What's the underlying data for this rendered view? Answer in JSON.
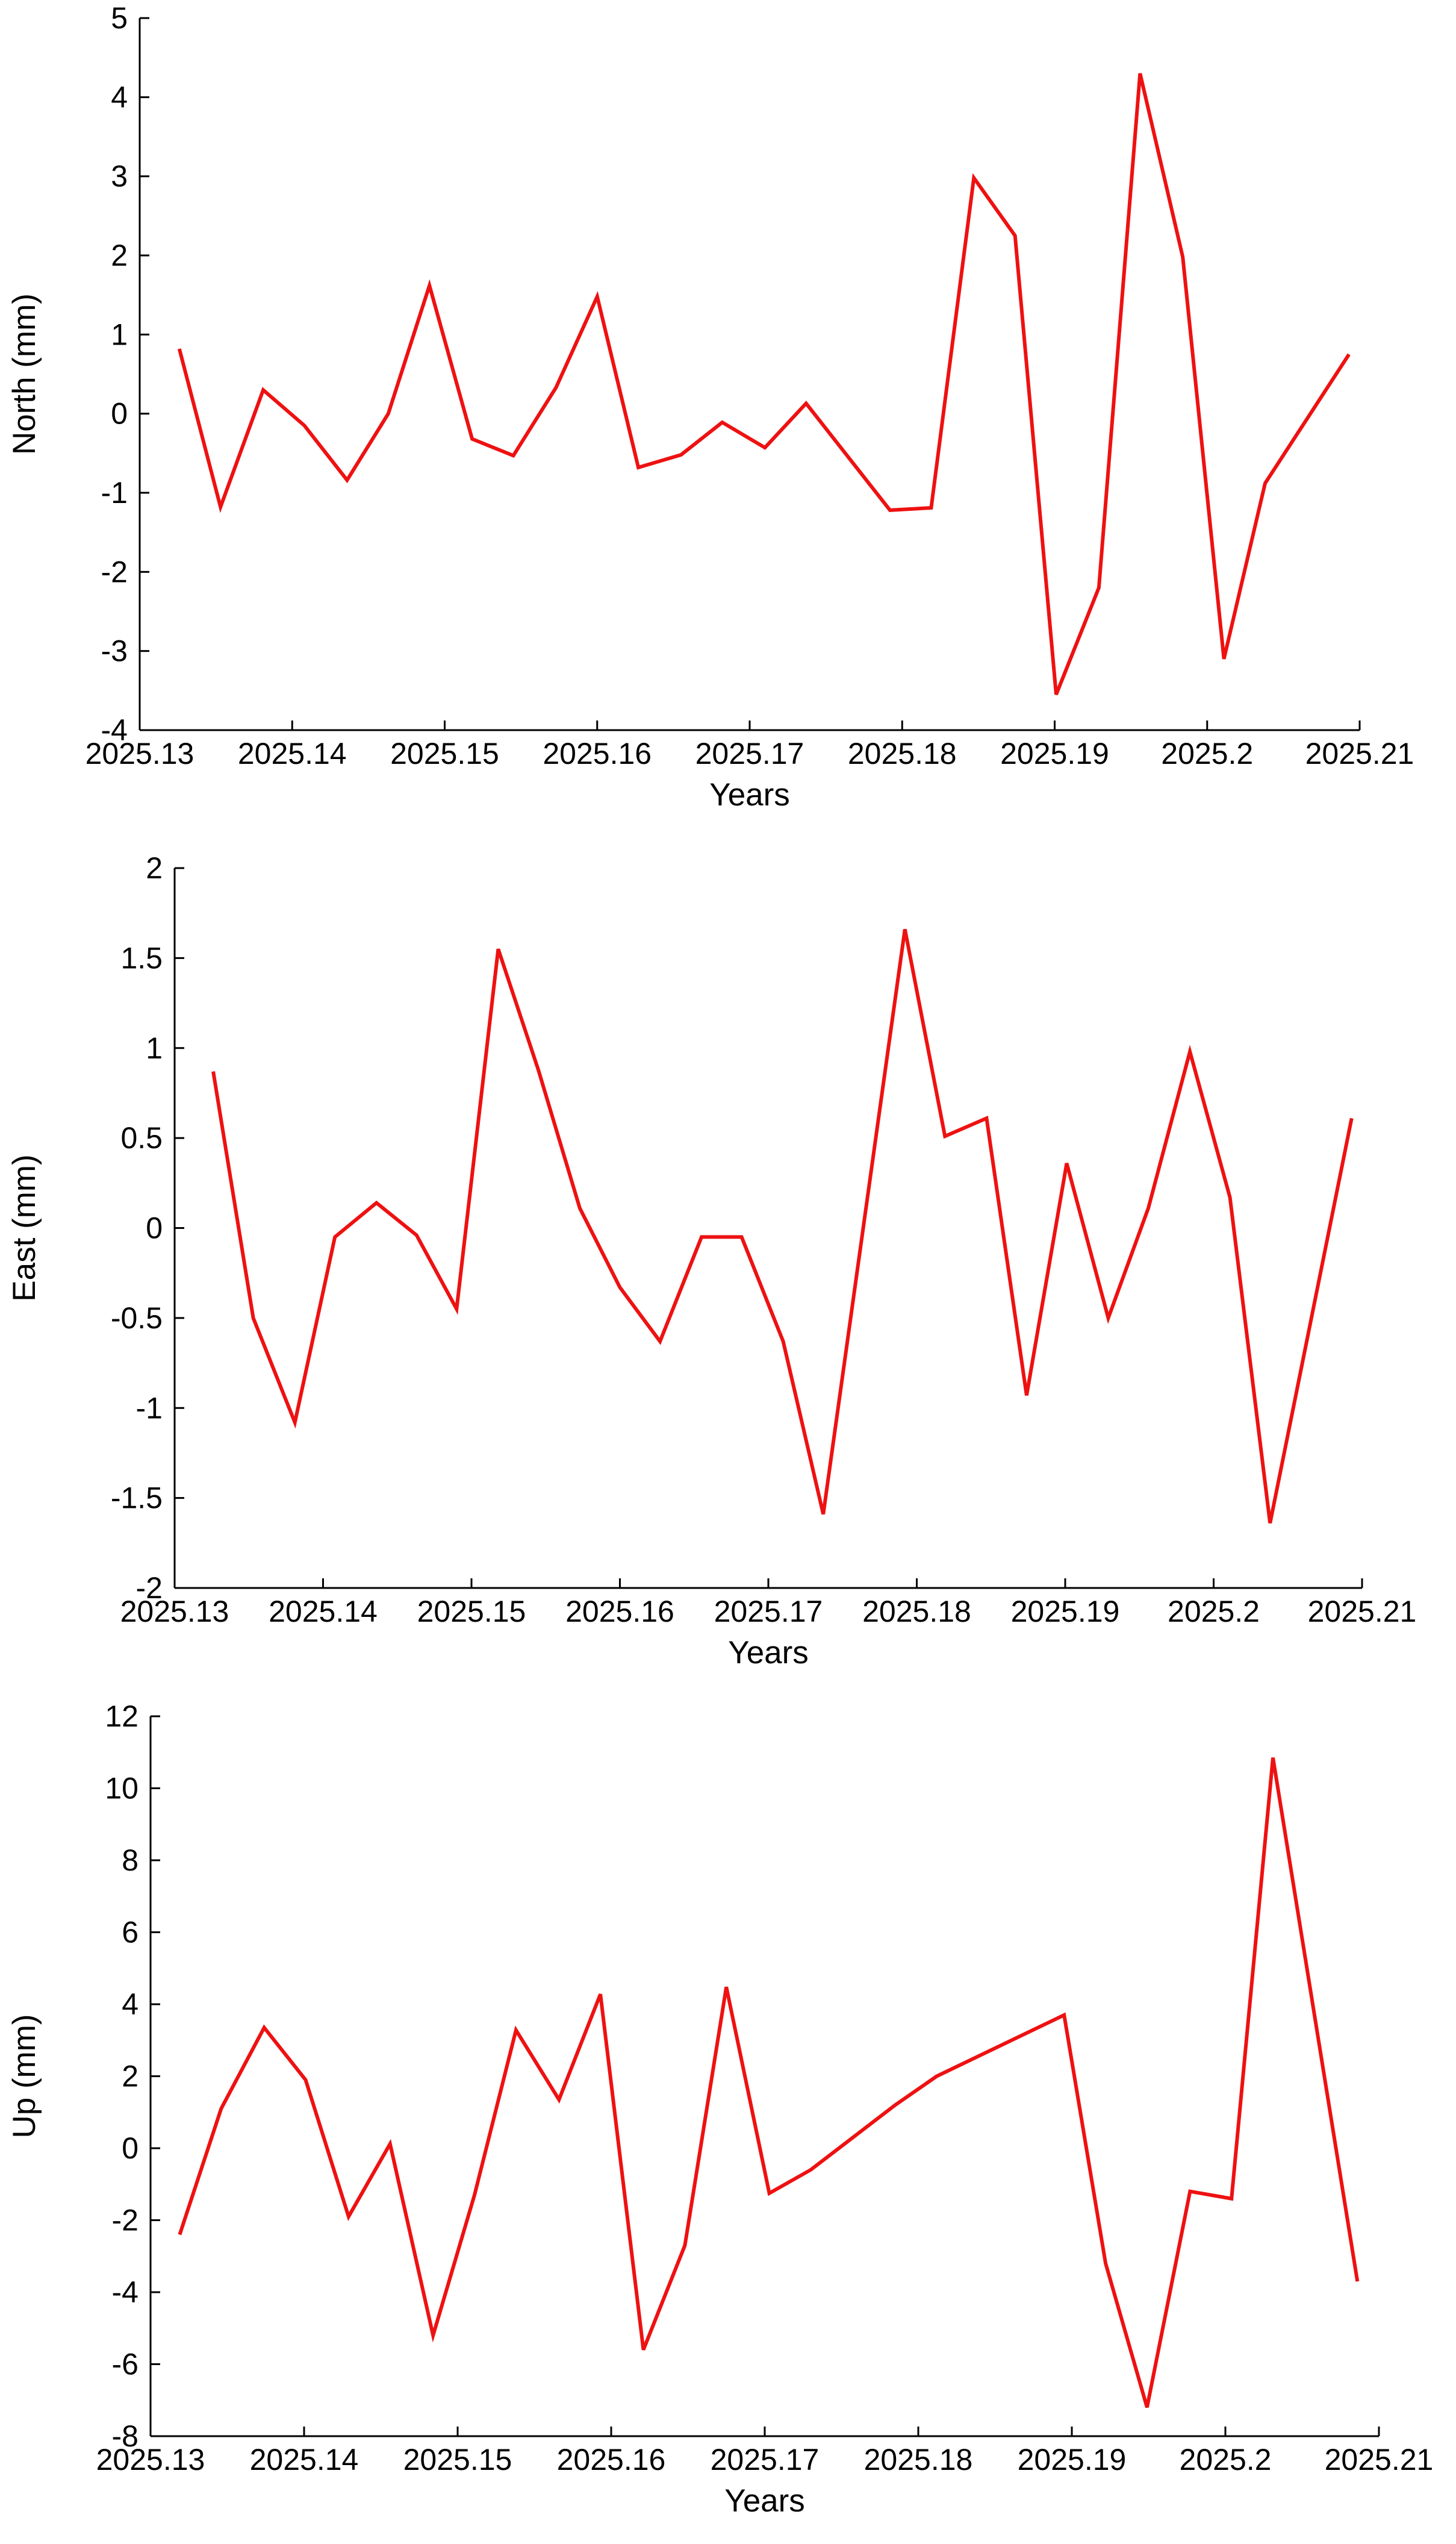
{
  "chart_data": [
    {
      "type": "line",
      "xlabel": "Years",
      "ylabel": "North (mm)",
      "xlim": [
        2025.13,
        2025.21
      ],
      "ylim": [
        -4,
        5
      ],
      "xticks": [
        2025.13,
        2025.14,
        2025.15,
        2025.16,
        2025.17,
        2025.18,
        2025.19,
        2025.2,
        2025.21
      ],
      "xtick_labels": [
        "2025.13",
        "2025.14",
        "2025.15",
        "2025.16",
        "2025.17",
        "2025.18",
        "2025.19",
        "2025.2",
        "2025.21"
      ],
      "yticks": [
        -4,
        -3,
        -2,
        -1,
        0,
        1,
        2,
        3,
        4,
        5
      ],
      "ytick_labels": [
        "-4",
        "-3",
        "-2",
        "-1",
        "0",
        "1",
        "2",
        "3",
        "4",
        "5"
      ],
      "grid": false,
      "series": [
        {
          "color": "#ee1111",
          "x": [
            2025.1326,
            2025.1353,
            2025.1381,
            2025.1408,
            2025.1436,
            2025.1463,
            2025.149,
            2025.1518,
            2025.1545,
            2025.1573,
            2025.16,
            2025.1627,
            2025.1655,
            2025.1682,
            2025.171,
            2025.1737,
            2025.1792,
            2025.1819,
            2025.1847,
            2025.1874,
            2025.1901,
            2025.1929,
            2025.1956,
            2025.1984,
            2025.2011,
            2025.2038,
            2025.2093
          ],
          "y": [
            0.82,
            -1.18,
            0.3,
            -0.15,
            -0.84,
            0.0,
            1.62,
            -0.32,
            -0.53,
            0.33,
            1.48,
            -0.68,
            -0.52,
            -0.11,
            -0.43,
            0.13,
            -1.22,
            -1.19,
            2.98,
            2.25,
            -3.55,
            -2.2,
            4.3,
            1.98,
            -3.1,
            -0.88,
            0.75
          ]
        }
      ]
    },
    {
      "type": "line",
      "xlabel": "Years",
      "ylabel": "East (mm)",
      "xlim": [
        2025.13,
        2025.21
      ],
      "ylim": [
        -2,
        2
      ],
      "xticks": [
        2025.13,
        2025.14,
        2025.15,
        2025.16,
        2025.17,
        2025.18,
        2025.19,
        2025.2,
        2025.21
      ],
      "xtick_labels": [
        "2025.13",
        "2025.14",
        "2025.15",
        "2025.16",
        "2025.17",
        "2025.18",
        "2025.19",
        "2025.2",
        "2025.21"
      ],
      "yticks": [
        -2,
        -1.5,
        -1,
        -0.5,
        0,
        0.5,
        1,
        1.5,
        2
      ],
      "ytick_labels": [
        "-2",
        "-1.5",
        "-1",
        "-0.5",
        "0",
        "0.5",
        "1",
        "1.5",
        "2"
      ],
      "grid": false,
      "series": [
        {
          "color": "#ee1111",
          "x": [
            2025.1326,
            2025.1353,
            2025.1381,
            2025.1408,
            2025.1436,
            2025.1463,
            2025.149,
            2025.1518,
            2025.1545,
            2025.1573,
            2025.16,
            2025.1627,
            2025.1655,
            2025.1682,
            2025.171,
            2025.1737,
            2025.1792,
            2025.1819,
            2025.1847,
            2025.1874,
            2025.1901,
            2025.1929,
            2025.1956,
            2025.1984,
            2025.2011,
            2025.2038,
            2025.2093
          ],
          "y": [
            0.87,
            -0.5,
            -1.08,
            -0.05,
            0.14,
            -0.04,
            -0.45,
            1.55,
            0.88,
            0.11,
            -0.33,
            -0.63,
            -0.05,
            -0.05,
            -0.63,
            -1.59,
            1.66,
            0.51,
            0.61,
            -0.93,
            0.36,
            -0.5,
            0.11,
            0.98,
            0.17,
            -1.64,
            0.61
          ]
        }
      ]
    },
    {
      "type": "line",
      "xlabel": "Years",
      "ylabel": "Up (mm)",
      "xlim": [
        2025.13,
        2025.21
      ],
      "ylim": [
        -8,
        12
      ],
      "xticks": [
        2025.13,
        2025.14,
        2025.15,
        2025.16,
        2025.17,
        2025.18,
        2025.19,
        2025.2,
        2025.21
      ],
      "xtick_labels": [
        "2025.13",
        "2025.14",
        "2025.15",
        "2025.16",
        "2025.17",
        "2025.18",
        "2025.19",
        "2025.2",
        "2025.21"
      ],
      "yticks": [
        -8,
        -6,
        -4,
        -2,
        0,
        2,
        4,
        6,
        8,
        10,
        12
      ],
      "ytick_labels": [
        "-8",
        "-6",
        "-4",
        "-2",
        "0",
        "2",
        "4",
        "6",
        "8",
        "10",
        "12"
      ],
      "grid": false,
      "series": [
        {
          "color": "#ee1111",
          "x": [
            2025.1319,
            2025.1346,
            2025.1374,
            2025.1401,
            2025.1429,
            2025.1456,
            2025.1484,
            2025.1511,
            2025.1538,
            2025.1566,
            2025.1593,
            2025.1621,
            2025.1648,
            2025.1675,
            2025.1703,
            2025.173,
            2025.1785,
            2025.1812,
            2025.1895,
            2025.1922,
            2025.1949,
            2025.1977,
            2025.2004,
            2025.2031,
            2025.2086
          ],
          "y": [
            -2.4,
            1.1,
            3.35,
            1.9,
            -1.9,
            0.12,
            -5.2,
            -1.3,
            3.28,
            1.35,
            4.28,
            -5.6,
            -2.7,
            4.48,
            -1.25,
            -0.6,
            1.2,
            2.0,
            3.7,
            -3.2,
            -7.2,
            -1.2,
            -1.4,
            10.85,
            -3.7
          ]
        }
      ]
    }
  ]
}
